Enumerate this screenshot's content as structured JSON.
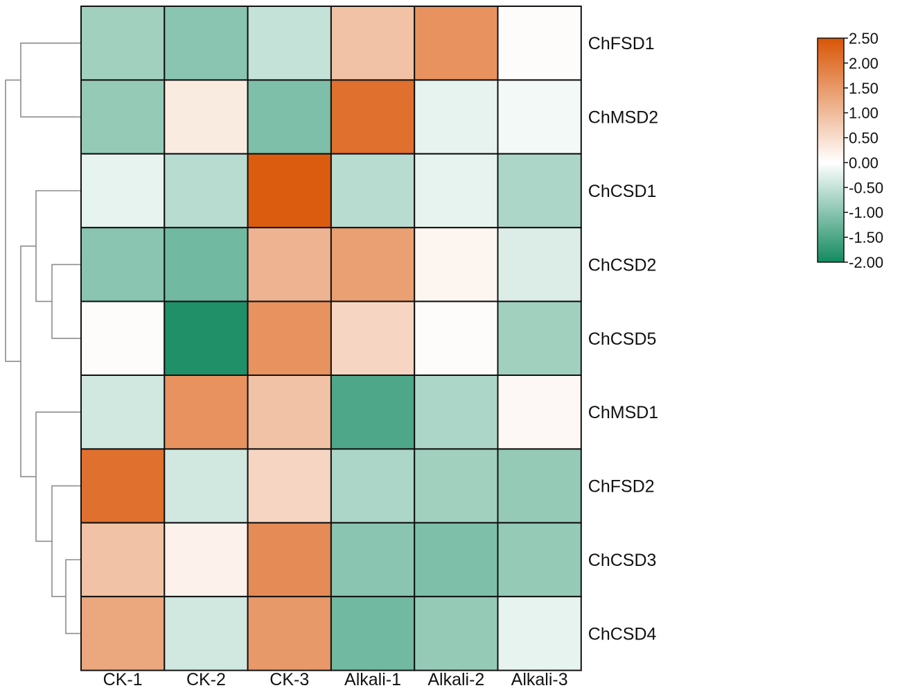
{
  "chart_data": {
    "type": "heatmap",
    "title": "",
    "columns": [
      "CK-1",
      "CK-2",
      "CK-3",
      "Alkali-1",
      "Alkali-2",
      "Alkali-3"
    ],
    "rows": [
      "ChFSD1",
      "ChMSD2",
      "ChCSD1",
      "ChCSD2",
      "ChCSD5",
      "ChMSD1",
      "ChFSD2",
      "ChCSD3",
      "ChCSD4"
    ],
    "values": [
      [
        -0.8,
        -1.0,
        -0.5,
        0.9,
        1.6,
        0.05
      ],
      [
        -0.9,
        0.3,
        -1.1,
        2.1,
        -0.2,
        -0.1
      ],
      [
        -0.2,
        -0.6,
        2.4,
        -0.6,
        -0.2,
        -0.7
      ],
      [
        -1.0,
        -1.2,
        1.1,
        1.4,
        0.15,
        -0.3
      ],
      [
        0.05,
        -1.9,
        1.6,
        0.6,
        0.05,
        -0.8
      ],
      [
        -0.4,
        1.6,
        0.9,
        -1.5,
        -0.7,
        0.1
      ],
      [
        2.1,
        -0.4,
        0.6,
        -0.7,
        -0.8,
        -0.9
      ],
      [
        0.9,
        0.2,
        1.7,
        -1.0,
        -1.1,
        -0.9
      ],
      [
        1.3,
        -0.4,
        1.5,
        -1.2,
        -0.9,
        -0.2
      ]
    ],
    "colorbar": {
      "min": -2.0,
      "max": 2.5,
      "ticks": [
        "2.50",
        "2.00",
        "1.50",
        "1.00",
        "0.50",
        "0.00",
        "-0.50",
        "-1.00",
        "-1.50",
        "-2.00"
      ],
      "tick_values": [
        2.5,
        2.0,
        1.5,
        1.0,
        0.5,
        0.0,
        -0.5,
        -1.0,
        -1.5,
        -2.0
      ],
      "colors": {
        "low": "#138a60",
        "mid": "#ffffff",
        "high": "#d95505"
      }
    },
    "dendrogram": {
      "side": "left",
      "leaf_order": [
        "ChFSD1",
        "ChMSD2",
        "ChCSD1",
        "ChCSD2",
        "ChCSD5",
        "ChMSD1",
        "ChFSD2",
        "ChCSD3",
        "ChCSD4"
      ]
    }
  }
}
